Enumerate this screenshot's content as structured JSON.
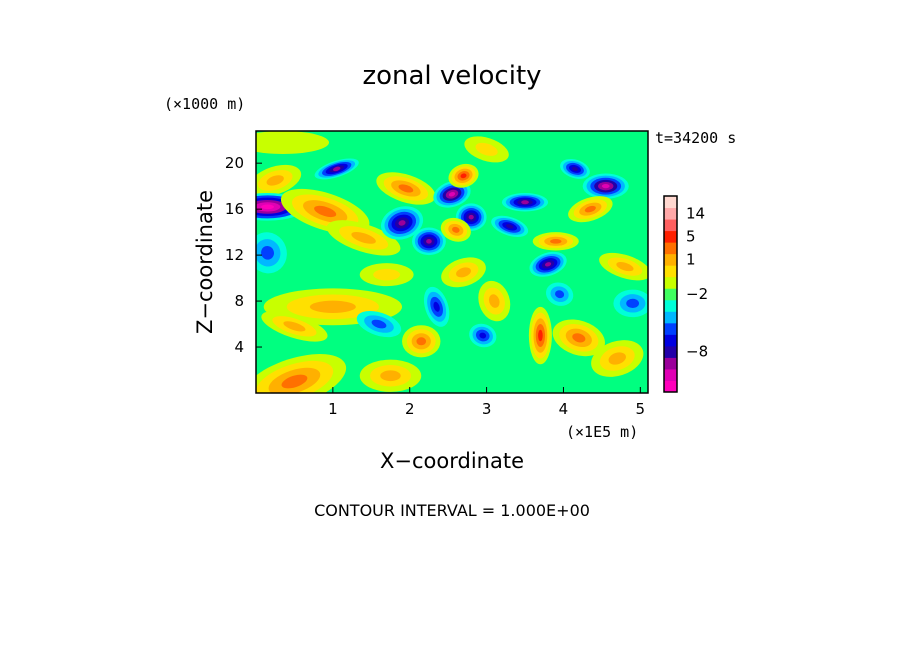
{
  "chart_data": {
    "type": "heatmap",
    "title": "zonal velocity",
    "xlabel": "X−coordinate",
    "ylabel": "Z−coordinate",
    "x_unit": "(×1E5 m)",
    "y_unit": "(×1000 m)",
    "time_label": "t=34200 s",
    "footer": "CONTOUR INTERVAL = 1.000E+00",
    "xlim": [
      0,
      5.1
    ],
    "ylim": [
      0,
      22.8
    ],
    "x_ticks": [
      {
        "value": 1,
        "label": "1"
      },
      {
        "value": 2,
        "label": "2"
      },
      {
        "value": 3,
        "label": "3"
      },
      {
        "value": 4,
        "label": "4"
      },
      {
        "value": 5,
        "label": "5"
      }
    ],
    "y_ticks": [
      {
        "value": 4,
        "label": "4"
      },
      {
        "value": 8,
        "label": "8"
      },
      {
        "value": 12,
        "label": "12"
      },
      {
        "value": 16,
        "label": "16"
      },
      {
        "value": 20,
        "label": "20"
      }
    ],
    "colorbar": {
      "levels": [
        {
          "color": "#ff00bb"
        },
        {
          "color": "#e000b4"
        },
        {
          "color": "#9a009a"
        },
        {
          "color": "#2200a8"
        },
        {
          "color": "#0000e0"
        },
        {
          "color": "#0040ff"
        },
        {
          "color": "#00b8ff"
        },
        {
          "color": "#00ffd8"
        },
        {
          "color": "#40ff60"
        },
        {
          "color": "#c8ff00"
        },
        {
          "color": "#ffe000"
        },
        {
          "color": "#ffb000"
        },
        {
          "color": "#ff7000"
        },
        {
          "color": "#ff2000"
        },
        {
          "color": "#ff6060"
        },
        {
          "color": "#ffa8a8"
        },
        {
          "color": "#ffd8d0"
        }
      ],
      "labels": [
        {
          "value": 14,
          "label": "14"
        },
        {
          "value": 5,
          "label": "5"
        },
        {
          "value": 1,
          "label": "1"
        },
        {
          "value": -2,
          "label": "−2"
        },
        {
          "value": -8,
          "label": "−8"
        }
      ]
    },
    "background_color": "#00ff80",
    "features": [
      {
        "x": 0.25,
        "z": 18.5,
        "v": 3,
        "rx": 0.35,
        "rz": 1.2
      },
      {
        "x": 0.15,
        "z": 16.2,
        "v": -9,
        "rx": 0.5,
        "rz": 1.2
      },
      {
        "x": 0.9,
        "z": 15.8,
        "v": 4,
        "rx": 0.6,
        "rz": 1.6
      },
      {
        "x": 1.05,
        "z": 19.5,
        "v": -6,
        "rx": 0.3,
        "rz": 0.7
      },
      {
        "x": 0.35,
        "z": 21.8,
        "v": 1,
        "rx": 0.6,
        "rz": 1.0
      },
      {
        "x": 1.4,
        "z": 13.5,
        "v": 3,
        "rx": 0.5,
        "rz": 1.2
      },
      {
        "x": 1.9,
        "z": 14.8,
        "v": -6,
        "rx": 0.28,
        "rz": 1.4
      },
      {
        "x": 2.25,
        "z": 13.2,
        "v": -6,
        "rx": 0.22,
        "rz": 1.2
      },
      {
        "x": 1.95,
        "z": 17.8,
        "v": 4,
        "rx": 0.4,
        "rz": 1.2
      },
      {
        "x": 2.55,
        "z": 17.3,
        "v": -7,
        "rx": 0.25,
        "rz": 1.1
      },
      {
        "x": 2.8,
        "z": 15.3,
        "v": -6,
        "rx": 0.2,
        "rz": 1.2
      },
      {
        "x": 2.6,
        "z": 14.2,
        "v": 4,
        "rx": 0.2,
        "rz": 1.0
      },
      {
        "x": 2.7,
        "z": 18.9,
        "v": 5,
        "rx": 0.2,
        "rz": 1.0
      },
      {
        "x": 3.5,
        "z": 16.6,
        "v": -6,
        "rx": 0.3,
        "rz": 0.8
      },
      {
        "x": 3.3,
        "z": 14.5,
        "v": -5,
        "rx": 0.25,
        "rz": 0.8
      },
      {
        "x": 3.8,
        "z": 11.2,
        "v": -6,
        "rx": 0.25,
        "rz": 1.0
      },
      {
        "x": 4.55,
        "z": 18.0,
        "v": -7,
        "rx": 0.3,
        "rz": 1.1
      },
      {
        "x": 4.15,
        "z": 19.5,
        "v": -5,
        "rx": 0.2,
        "rz": 0.8
      },
      {
        "x": 4.35,
        "z": 16.0,
        "v": 4,
        "rx": 0.3,
        "rz": 1.0
      },
      {
        "x": 3.9,
        "z": 13.2,
        "v": 4,
        "rx": 0.3,
        "rz": 0.8
      },
      {
        "x": 4.8,
        "z": 11.0,
        "v": 3,
        "rx": 0.35,
        "rz": 1.0
      },
      {
        "x": 0.15,
        "z": 12.2,
        "v": -3,
        "rx": 0.25,
        "rz": 1.8
      },
      {
        "x": 1.0,
        "z": 7.5,
        "v": 3,
        "rx": 0.9,
        "rz": 1.6
      },
      {
        "x": 0.5,
        "z": 5.8,
        "v": 3,
        "rx": 0.45,
        "rz": 1.0
      },
      {
        "x": 0.5,
        "z": 1.0,
        "v": 4,
        "rx": 0.7,
        "rz": 2.0
      },
      {
        "x": 1.75,
        "z": 1.5,
        "v": 3,
        "rx": 0.4,
        "rz": 1.4
      },
      {
        "x": 1.6,
        "z": 6.0,
        "v": -3,
        "rx": 0.3,
        "rz": 1.0
      },
      {
        "x": 2.35,
        "z": 7.5,
        "v": -4,
        "rx": 0.15,
        "rz": 1.8
      },
      {
        "x": 2.15,
        "z": 4.5,
        "v": 4,
        "rx": 0.25,
        "rz": 1.4
      },
      {
        "x": 2.95,
        "z": 5.0,
        "v": -4,
        "rx": 0.18,
        "rz": 1.0
      },
      {
        "x": 3.1,
        "z": 8.0,
        "v": 3,
        "rx": 0.2,
        "rz": 1.8
      },
      {
        "x": 3.7,
        "z": 5.0,
        "v": 5,
        "rx": 0.15,
        "rz": 2.5
      },
      {
        "x": 4.2,
        "z": 4.8,
        "v": 4,
        "rx": 0.35,
        "rz": 1.5
      },
      {
        "x": 4.7,
        "z": 3.0,
        "v": 3,
        "rx": 0.35,
        "rz": 1.5
      },
      {
        "x": 4.9,
        "z": 7.8,
        "v": -3,
        "rx": 0.25,
        "rz": 1.2
      },
      {
        "x": 3.95,
        "z": 8.6,
        "v": -3,
        "rx": 0.18,
        "rz": 1.0
      },
      {
        "x": 2.7,
        "z": 10.5,
        "v": 3,
        "rx": 0.3,
        "rz": 1.2
      },
      {
        "x": 1.7,
        "z": 10.3,
        "v": 2,
        "rx": 0.35,
        "rz": 1.0
      },
      {
        "x": 3.0,
        "z": 21.2,
        "v": 2,
        "rx": 0.3,
        "rz": 1.0
      }
    ]
  }
}
